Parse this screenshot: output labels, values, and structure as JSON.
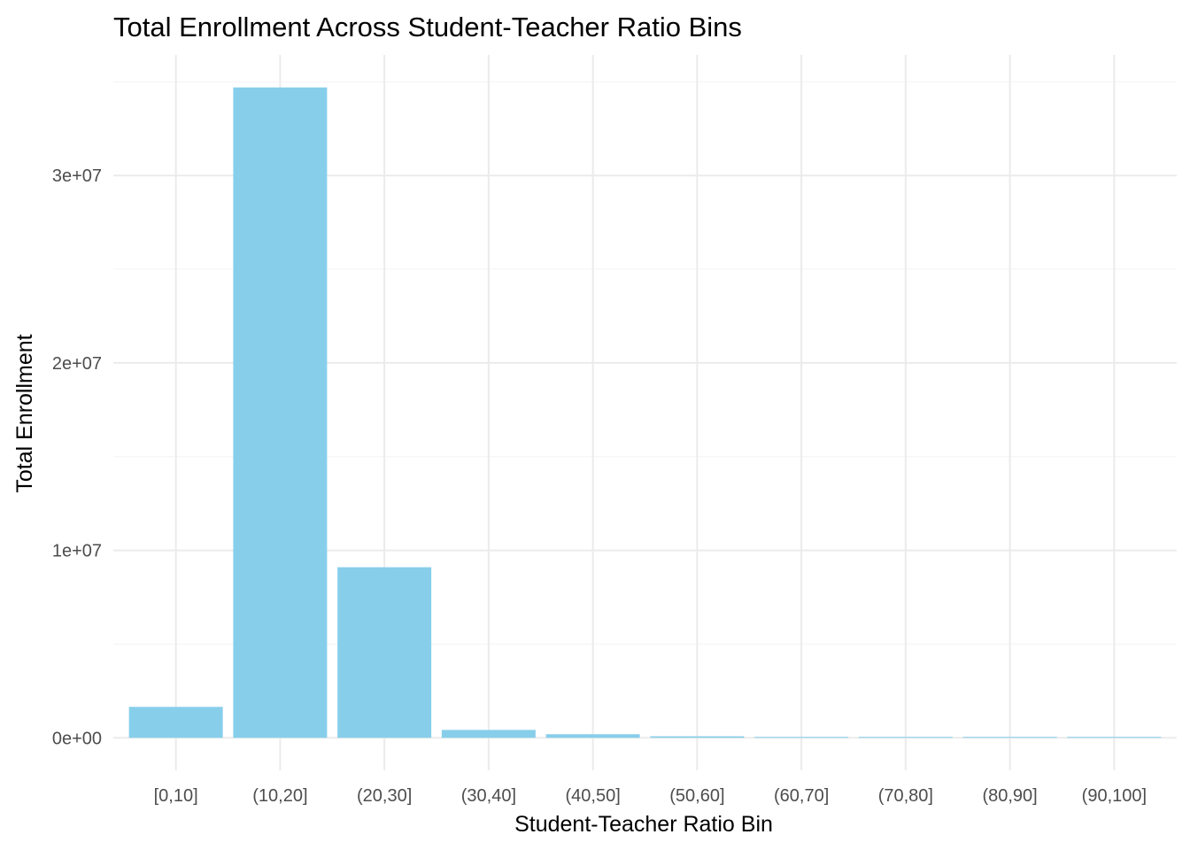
{
  "chart_data": {
    "type": "bar",
    "title": "Total Enrollment Across Student-Teacher Ratio Bins",
    "xlabel": "Student-Teacher Ratio Bin",
    "ylabel": "Total Enrollment",
    "categories": [
      "[0,10]",
      "(10,20]",
      "(20,30]",
      "(30,40]",
      "(40,50]",
      "(50,60]",
      "(60,70]",
      "(70,80]",
      "(80,90]",
      "(90,100]"
    ],
    "values": [
      1650000,
      34700000,
      9100000,
      420000,
      190000,
      80000,
      40000,
      25000,
      20000,
      15000
    ],
    "bar_color": "#87CEEB",
    "ylim": [
      -1735000,
      36435000
    ],
    "yticks": [
      0,
      10000000,
      20000000,
      30000000
    ],
    "ytick_labels": [
      "0e+00",
      "1e+07",
      "2e+07",
      "3e+07"
    ],
    "yminor": [
      5000000,
      15000000,
      25000000,
      35000000
    ],
    "grid": true,
    "legend": "none"
  }
}
